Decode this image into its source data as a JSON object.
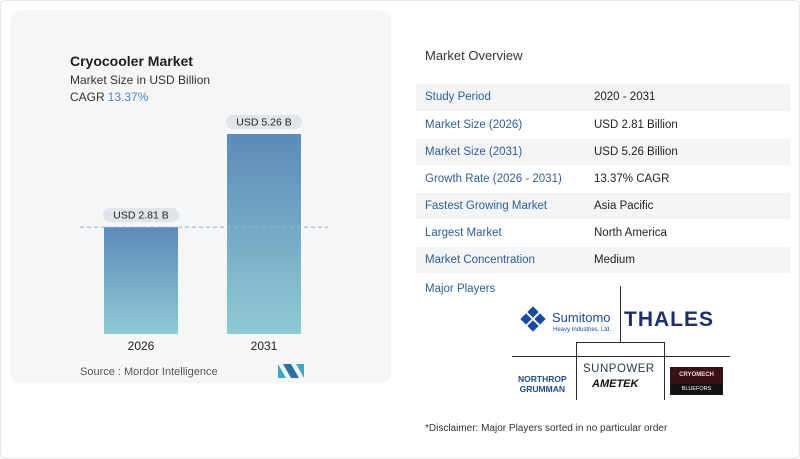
{
  "chart_data": {
    "type": "bar",
    "title": "Cryocooler Market",
    "subtitle": "Market Size in USD Billion",
    "cagr_label": "CAGR",
    "cagr_value": "13.37%",
    "categories": [
      "2026",
      "2031"
    ],
    "values": [
      2.81,
      5.26
    ],
    "data_labels": [
      "USD 2.81 B",
      "USD 5.26 B"
    ],
    "ylim": [
      0,
      5.26
    ],
    "reference_line_value": 2.81,
    "bar_gradient": [
      "#5b8ab9",
      "#8fcbd3"
    ],
    "label_bg": "#e1e4ea"
  },
  "source": "Source :  Mordor Intelligence",
  "overview": {
    "title": "Market Overview",
    "rows": [
      {
        "label": "Study Period",
        "value": "2020 - 2031"
      },
      {
        "label": "Market Size (2026)",
        "value": "USD 2.81 Billion"
      },
      {
        "label": "Market Size (2031)",
        "value": "USD 5.26 Billion"
      },
      {
        "label": "Growth Rate (2026 - 2031)",
        "value": "13.37% CAGR"
      },
      {
        "label": "Fastest Growing Market",
        "value": "Asia Pacific"
      },
      {
        "label": "Largest Market",
        "value": "North America"
      },
      {
        "label": "Market Concentration",
        "value": "Medium"
      }
    ]
  },
  "players": {
    "title": "Major Players",
    "sumitomo_name": "Sumitomo",
    "sumitomo_sub": "Heavy Industries, Ltd.",
    "thales": "THALES",
    "northrop_1": "NORTHROP",
    "northrop_2": "GRUMMAN",
    "sunpower": "SUNPOWER",
    "ametek": "AMETEK",
    "cryomech": "CRYOMECH",
    "bluefors": "BLUEFORS"
  },
  "disclaimer": "*Disclaimer: Major Players sorted in no particular order",
  "colors": {
    "accent": "#2e5f96",
    "cagr": "#4a86c5"
  }
}
